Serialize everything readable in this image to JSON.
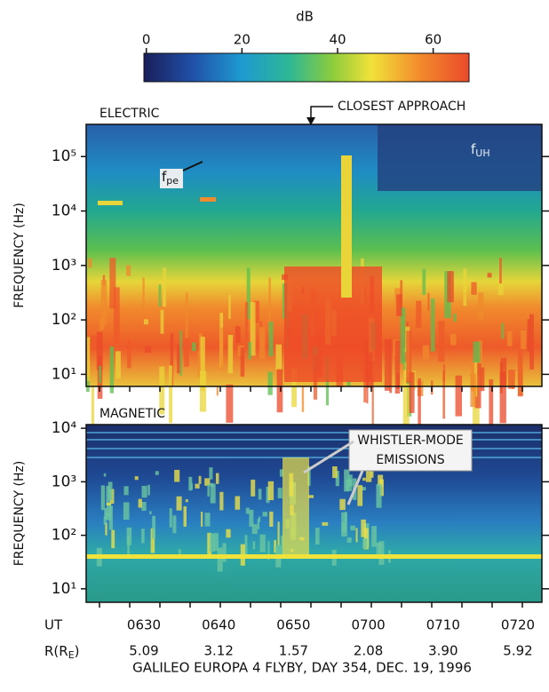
{
  "colorbar": {
    "label": "dB",
    "lim": [
      -0.5,
      67.5
    ],
    "ticks": [
      0,
      20,
      40,
      60
    ]
  },
  "chart_data": [
    {
      "type": "spectrogram",
      "title": "ELECTRIC",
      "ylabel": "FREQUENCY (Hz)",
      "log_y": true,
      "ylim": [
        6,
        390000
      ],
      "yticks": [
        {
          "value": 10,
          "label": "10¹"
        },
        {
          "value": 100,
          "label": "10²"
        },
        {
          "value": 1000,
          "label": "10³"
        },
        {
          "value": 10000,
          "label": "10⁴"
        },
        {
          "value": 100000,
          "label": "10⁵"
        }
      ],
      "annotations": {
        "closest_approach": "CLOSEST APPROACH",
        "fpe": {
          "symbol": "f",
          "subscript": "pe"
        },
        "fuh": {
          "symbol": "f",
          "subscript": "UH"
        }
      }
    },
    {
      "type": "spectrogram",
      "title": "MAGNETIC",
      "ylabel": "FREQUENCY (Hz)",
      "log_y": true,
      "ylim": [
        5.6,
        11700
      ],
      "yticks": [
        {
          "value": 10,
          "label": "10¹"
        },
        {
          "value": 100,
          "label": "10²"
        },
        {
          "value": 1000,
          "label": "10³"
        },
        {
          "value": 10000,
          "label": "10⁴"
        }
      ],
      "annotations": {
        "whistler": [
          "WHISTLER-MODE",
          "EMISSIONS"
        ]
      }
    }
  ],
  "x_axis": {
    "label": "UT",
    "ticks": [
      "0630",
      "0640",
      "0650",
      "0700",
      "0710",
      "0720"
    ]
  },
  "range_row": {
    "label": "R(R",
    "subscript": "E",
    "close": ")",
    "values": [
      "5.09",
      "3.12",
      "1.57",
      "2.08",
      "3.90",
      "5.92"
    ]
  },
  "footer": "GALILEO  EUROPA 4 FLYBY,  DAY 354,  DEC. 19, 1996"
}
